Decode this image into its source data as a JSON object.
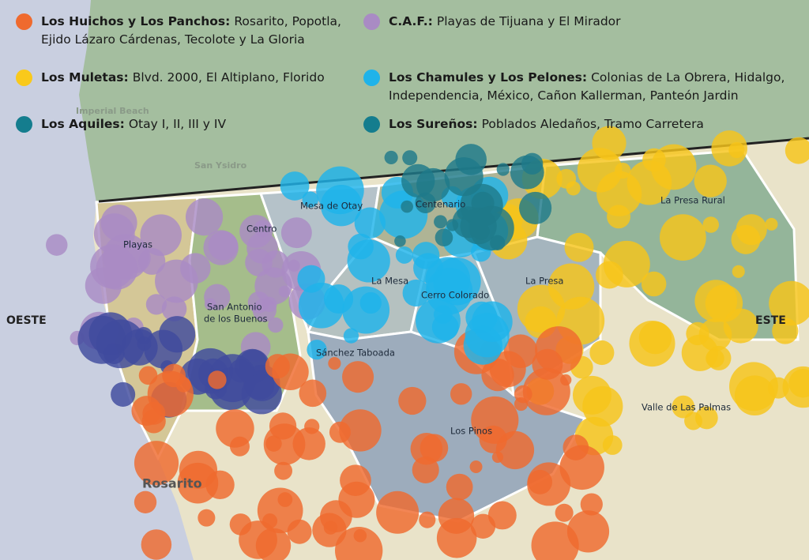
{
  "legend": [
    {
      "name": "Los Huichos y Los Panchos:",
      "text": "Rosarito, Popotla, Ejido Lázaro Cárdenas, Tecolote y La Gloria",
      "color": "#ef6a2e"
    },
    {
      "name": "C.A.F.:",
      "text": "Playas de Tijuana y El Mirador",
      "color": "#a98bc4"
    },
    {
      "name": "Los Muletas:",
      "text": "Blvd. 2000, El Altiplano, Florido",
      "color": "#f9c91b"
    },
    {
      "name": "Los Chamules y Los Pelones:",
      "text": "Colonias de La Obrera, Hidalgo, Independencia, México, Cañon Kallerman, Panteón Jardin",
      "color": "#1fb3ea"
    },
    {
      "name": "Los Aquiles:",
      "text": "Otay I, II, III y IV",
      "color": "#147d8e"
    },
    {
      "name": "Los Sureños:",
      "text": "Poblados Aledaños, Tramo Carretera",
      "color": "#147d8e"
    }
  ],
  "map": {
    "us_places": [
      "Imperial Beach",
      "San Ysidro"
    ],
    "places": [
      "Playas",
      "Centro",
      "Mesa de Otay",
      "Centenario",
      "La Presa Rural",
      "La Mesa",
      "Cerro Colorado",
      "La Presa",
      "San Antonio",
      "de los Buenos",
      "Sánchez Taboada",
      "Los Pinos",
      "Valle de Las Palmas"
    ],
    "city": "Rosarito",
    "west": "OESTE",
    "east": "ESTE"
  }
}
